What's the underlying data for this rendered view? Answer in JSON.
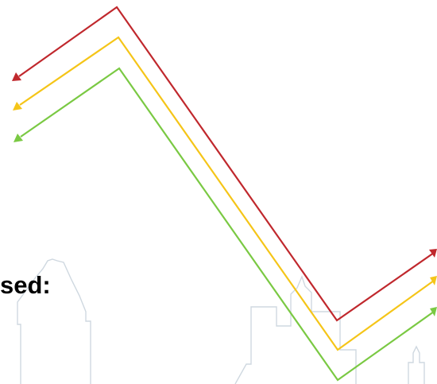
{
  "heading": {
    "text": "sed:"
  },
  "colors": {
    "red_arrow": "#c0282d",
    "yellow_arrow": "#f5c518",
    "green_arrow": "#7ac943",
    "skyline_outline": "#cfd8e0"
  }
}
